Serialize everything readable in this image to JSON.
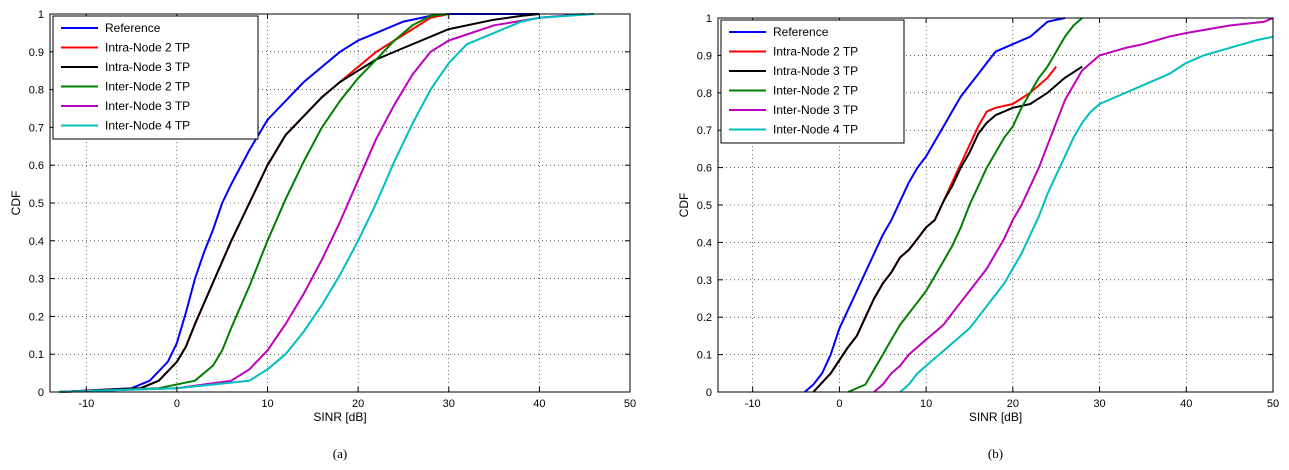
{
  "colors": {
    "Reference": "#0000ff",
    "Intra-Node 2 TP": "#ff0000",
    "Intra-Node 3 TP": "#000000",
    "Inter-Node 2 TP": "#008000",
    "Inter-Node 3 TP": "#bf00bf",
    "Inter-Node 4 TP": "#00bfbf"
  },
  "chart_data": [
    {
      "type": "line",
      "caption": "(a)",
      "xlabel": "SINR [dB]",
      "ylabel": "CDF",
      "xlim": [
        -14,
        50
      ],
      "ylim": [
        0,
        1
      ],
      "xticks": [
        -10,
        0,
        10,
        20,
        30,
        40,
        50
      ],
      "yticks": [
        0,
        0.1,
        0.2,
        0.3,
        0.4,
        0.5,
        0.6,
        0.7,
        0.8,
        0.9,
        1
      ],
      "grid": true,
      "legend_position": "top-left",
      "series": [
        {
          "name": "Reference",
          "x": [
            -13,
            -5,
            -3,
            -1,
            0,
            1,
            2,
            3,
            4,
            5,
            6,
            8,
            10,
            12,
            14,
            16,
            18,
            20,
            22,
            25,
            28,
            30,
            40
          ],
          "y": [
            0,
            0.01,
            0.03,
            0.08,
            0.13,
            0.21,
            0.3,
            0.37,
            0.43,
            0.5,
            0.55,
            0.64,
            0.72,
            0.77,
            0.82,
            0.86,
            0.9,
            0.93,
            0.95,
            0.98,
            0.995,
            1,
            1
          ]
        },
        {
          "name": "Intra-Node 2 TP",
          "x": [
            -13,
            -4,
            -2,
            0,
            1,
            2,
            4,
            6,
            8,
            10,
            12,
            14,
            16,
            18,
            20,
            22,
            24,
            26,
            28,
            30
          ],
          "y": [
            0,
            0.01,
            0.03,
            0.08,
            0.12,
            0.18,
            0.29,
            0.4,
            0.5,
            0.6,
            0.68,
            0.73,
            0.78,
            0.82,
            0.86,
            0.9,
            0.93,
            0.96,
            0.99,
            1
          ]
        },
        {
          "name": "Intra-Node 3 TP",
          "x": [
            -13,
            -4,
            -2,
            0,
            1,
            2,
            4,
            6,
            8,
            10,
            12,
            14,
            16,
            18,
            20,
            22,
            25,
            28,
            30,
            35,
            38,
            40
          ],
          "y": [
            0,
            0.01,
            0.03,
            0.08,
            0.12,
            0.18,
            0.29,
            0.4,
            0.5,
            0.6,
            0.68,
            0.73,
            0.78,
            0.82,
            0.85,
            0.88,
            0.91,
            0.94,
            0.96,
            0.985,
            0.995,
            1
          ]
        },
        {
          "name": "Inter-Node 2 TP",
          "x": [
            -13,
            -2,
            2,
            4,
            5,
            6,
            8,
            10,
            12,
            14,
            16,
            18,
            20,
            22,
            24,
            26,
            28,
            30
          ],
          "y": [
            0,
            0.01,
            0.03,
            0.07,
            0.11,
            0.17,
            0.28,
            0.4,
            0.51,
            0.61,
            0.7,
            0.77,
            0.83,
            0.88,
            0.93,
            0.97,
            0.995,
            1
          ]
        },
        {
          "name": "Inter-Node 3 TP",
          "x": [
            -13,
            0,
            6,
            8,
            10,
            12,
            14,
            16,
            18,
            20,
            22,
            24,
            26,
            28,
            30,
            35,
            40,
            45
          ],
          "y": [
            0,
            0.01,
            0.03,
            0.06,
            0.11,
            0.18,
            0.26,
            0.35,
            0.45,
            0.56,
            0.67,
            0.76,
            0.84,
            0.9,
            0.93,
            0.97,
            0.99,
            1
          ]
        },
        {
          "name": "Inter-Node 4 TP",
          "x": [
            -13,
            0,
            8,
            10,
            12,
            14,
            16,
            18,
            20,
            22,
            24,
            26,
            28,
            30,
            32,
            35,
            38,
            40,
            46
          ],
          "y": [
            0,
            0.01,
            0.03,
            0.06,
            0.1,
            0.16,
            0.23,
            0.31,
            0.4,
            0.5,
            0.61,
            0.71,
            0.8,
            0.87,
            0.92,
            0.95,
            0.98,
            0.99,
            1
          ]
        }
      ]
    },
    {
      "type": "line",
      "caption": "(b)",
      "xlabel": "SINR [dB]",
      "ylabel": "CDF",
      "xlim": [
        -14,
        50
      ],
      "ylim": [
        0,
        1
      ],
      "xticks": [
        -10,
        0,
        10,
        20,
        30,
        40,
        50
      ],
      "yticks": [
        0,
        0.1,
        0.2,
        0.3,
        0.4,
        0.5,
        0.6,
        0.7,
        0.8,
        0.9,
        1
      ],
      "grid": true,
      "legend_position": "top-left",
      "series": [
        {
          "name": "Reference",
          "x": [
            -4,
            -3,
            -2,
            -1,
            0,
            1,
            2,
            3,
            4,
            5,
            6,
            7,
            8,
            9,
            10,
            11,
            12,
            13,
            14,
            15,
            16,
            17,
            18,
            20,
            22,
            24,
            26
          ],
          "y": [
            0,
            0.02,
            0.05,
            0.1,
            0.17,
            0.22,
            0.27,
            0.32,
            0.37,
            0.42,
            0.46,
            0.51,
            0.56,
            0.6,
            0.63,
            0.67,
            0.71,
            0.75,
            0.79,
            0.82,
            0.85,
            0.88,
            0.91,
            0.93,
            0.95,
            0.99,
            1
          ]
        },
        {
          "name": "Intra-Node 2 TP",
          "x": [
            -3,
            -1,
            1,
            2,
            3,
            4,
            5,
            6,
            7,
            8,
            9,
            10,
            11,
            12,
            13,
            14,
            15,
            16,
            17,
            18,
            20,
            22,
            24,
            25
          ],
          "y": [
            0,
            0.05,
            0.12,
            0.15,
            0.2,
            0.25,
            0.29,
            0.32,
            0.36,
            0.38,
            0.41,
            0.44,
            0.46,
            0.51,
            0.56,
            0.61,
            0.66,
            0.71,
            0.75,
            0.76,
            0.77,
            0.8,
            0.84,
            0.87
          ]
        },
        {
          "name": "Intra-Node 3 TP",
          "x": [
            -3,
            -1,
            1,
            2,
            3,
            4,
            5,
            6,
            7,
            8,
            9,
            10,
            11,
            12,
            13,
            14,
            15,
            16,
            17,
            18,
            20,
            22,
            24,
            26,
            28
          ],
          "y": [
            0,
            0.05,
            0.12,
            0.15,
            0.2,
            0.25,
            0.29,
            0.32,
            0.36,
            0.38,
            0.41,
            0.44,
            0.46,
            0.51,
            0.55,
            0.6,
            0.64,
            0.69,
            0.72,
            0.74,
            0.76,
            0.77,
            0.8,
            0.84,
            0.87
          ]
        },
        {
          "name": "Inter-Node 2 TP",
          "x": [
            1,
            3,
            4,
            5,
            6,
            7,
            8,
            9,
            10,
            11,
            12,
            13,
            14,
            15,
            16,
            17,
            18,
            19,
            20,
            21,
            22,
            23,
            24,
            25,
            26,
            27,
            28
          ],
          "y": [
            0,
            0.02,
            0.06,
            0.1,
            0.14,
            0.18,
            0.21,
            0.24,
            0.27,
            0.31,
            0.35,
            0.39,
            0.44,
            0.5,
            0.55,
            0.6,
            0.64,
            0.68,
            0.71,
            0.76,
            0.8,
            0.84,
            0.87,
            0.91,
            0.95,
            0.98,
            1
          ]
        },
        {
          "name": "Inter-Node 3 TP",
          "x": [
            4,
            5,
            6,
            7,
            8,
            9,
            10,
            11,
            12,
            13,
            14,
            15,
            16,
            17,
            18,
            19,
            20,
            21,
            22,
            23,
            24,
            25,
            26,
            27,
            28,
            30,
            33,
            35,
            38,
            40,
            45,
            49,
            50
          ],
          "y": [
            0,
            0.02,
            0.05,
            0.07,
            0.1,
            0.12,
            0.14,
            0.16,
            0.18,
            0.21,
            0.24,
            0.27,
            0.3,
            0.33,
            0.37,
            0.41,
            0.46,
            0.5,
            0.55,
            0.6,
            0.66,
            0.72,
            0.78,
            0.82,
            0.86,
            0.9,
            0.92,
            0.93,
            0.95,
            0.96,
            0.98,
            0.99,
            1
          ]
        },
        {
          "name": "Inter-Node 4 TP",
          "x": [
            7,
            8,
            9,
            10,
            11,
            12,
            13,
            14,
            15,
            16,
            17,
            18,
            19,
            20,
            21,
            22,
            23,
            24,
            25,
            26,
            27,
            28,
            29,
            30,
            32,
            35,
            38,
            40,
            42,
            45,
            48,
            50
          ],
          "y": [
            0,
            0.02,
            0.05,
            0.07,
            0.09,
            0.11,
            0.13,
            0.15,
            0.17,
            0.2,
            0.23,
            0.26,
            0.29,
            0.33,
            0.37,
            0.42,
            0.47,
            0.53,
            0.58,
            0.63,
            0.68,
            0.72,
            0.75,
            0.77,
            0.79,
            0.82,
            0.85,
            0.88,
            0.9,
            0.92,
            0.94,
            0.95
          ]
        }
      ]
    }
  ]
}
